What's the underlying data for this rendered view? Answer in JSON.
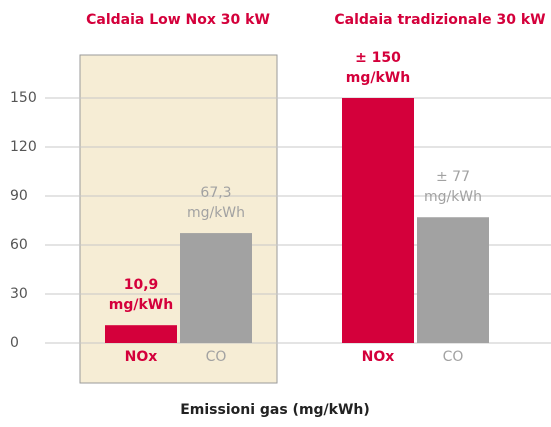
{
  "chart_data": {
    "type": "bar",
    "categories": [
      "Caldaia Low Nox 30 kW",
      "Caldaia tradizionale 30 kW"
    ],
    "series": [
      {
        "name": "NOx",
        "color": "#d4003b",
        "values": [
          10.9,
          150
        ],
        "value_labels": [
          "10,9\nmg/kWh",
          "± 150\nmg/kWh"
        ]
      },
      {
        "name": "CO",
        "color": "#a2a2a2",
        "values": [
          67.3,
          77
        ],
        "value_labels": [
          "67,3\nmg/kWh",
          "± 77\nmg/kWh"
        ]
      }
    ],
    "x_label": "Emissioni gas (mg/kWh)",
    "ylim": [
      0,
      150
    ],
    "yticks": [
      0,
      30,
      60,
      90,
      120,
      150
    ],
    "grid": true
  }
}
